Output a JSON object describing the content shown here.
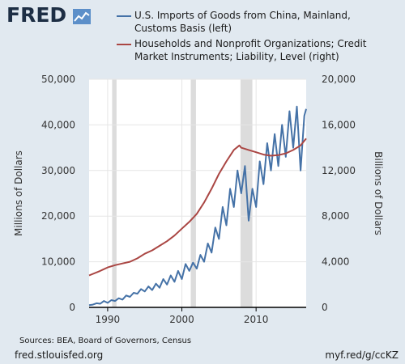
{
  "brand": {
    "logo_text": "FRED",
    "icon_name": "fred-chart-icon"
  },
  "colors": {
    "left_series": "#4572a7",
    "right_series": "#aa4643",
    "recession": "#dcdcdc",
    "background": "#e1e9f0"
  },
  "legend": {
    "items": [
      {
        "label_lines": [
          "U.S. Imports of Goods from China, Mainland,",
          "Customs Basis (left)"
        ]
      },
      {
        "label_lines": [
          "Households and Nonprofit Organizations; Credit",
          "Market Instruments; Liability, Level (right)"
        ]
      }
    ]
  },
  "footer": {
    "sources": "Sources: BEA, Board of Governors, Census",
    "left_link": "fred.stlouisfed.org",
    "right_link": "myf.red/g/ccKZ"
  },
  "chart_data": {
    "type": "line",
    "x_axis": {
      "range": [
        1987.5,
        2016.75
      ],
      "ticks": [
        1990,
        2000,
        2010
      ],
      "tick_labels": [
        "1990",
        "2000",
        "2010"
      ]
    },
    "y_left": {
      "label": "Millions of Dollars",
      "range": [
        0,
        50000
      ],
      "ticks": [
        0,
        10000,
        20000,
        30000,
        40000,
        50000
      ],
      "tick_labels": [
        "0",
        "10,000",
        "20,000",
        "30,000",
        "40,000",
        "50,000"
      ]
    },
    "y_right": {
      "label": "Billions of Dollars",
      "range": [
        0,
        20000
      ],
      "ticks": [
        0,
        4000,
        8000,
        12000,
        16000,
        20000
      ],
      "tick_labels": [
        "0",
        "4,000",
        "8,000",
        "12,000",
        "16,000",
        "20,000"
      ]
    },
    "grid": true,
    "recessions": [
      [
        1990.6,
        1991.2
      ],
      [
        2001.2,
        2001.9
      ],
      [
        2007.9,
        2009.5
      ]
    ],
    "series": [
      {
        "name": "U.S. Imports of Goods from China, Mainland, Customs Basis (left)",
        "axis": "left",
        "x": [
          1987.5,
          1988.0,
          1988.5,
          1989.0,
          1989.5,
          1990.0,
          1990.5,
          1991.0,
          1991.5,
          1992.0,
          1992.5,
          1993.0,
          1993.5,
          1994.0,
          1994.5,
          1995.0,
          1995.5,
          1996.0,
          1996.5,
          1997.0,
          1997.5,
          1998.0,
          1998.5,
          1999.0,
          1999.5,
          2000.0,
          2000.5,
          2001.0,
          2001.5,
          2002.0,
          2002.5,
          2003.0,
          2003.5,
          2004.0,
          2004.5,
          2005.0,
          2005.5,
          2006.0,
          2006.5,
          2007.0,
          2007.5,
          2008.0,
          2008.5,
          2009.0,
          2009.5,
          2010.0,
          2010.5,
          2011.0,
          2011.5,
          2012.0,
          2012.5,
          2013.0,
          2013.5,
          2014.0,
          2014.5,
          2015.0,
          2015.5,
          2016.0,
          2016.5,
          2016.75
        ],
        "y": [
          500,
          600,
          900,
          800,
          1400,
          1000,
          1600,
          1400,
          2000,
          1700,
          2600,
          2300,
          3200,
          3000,
          4000,
          3500,
          4600,
          3800,
          5200,
          4300,
          6200,
          5000,
          7000,
          5600,
          8000,
          6200,
          9500,
          8000,
          9800,
          8500,
          11500,
          10000,
          14000,
          12000,
          17500,
          15000,
          22000,
          18000,
          26000,
          22000,
          30000,
          25000,
          31000,
          19000,
          26000,
          22000,
          32000,
          27000,
          36000,
          30000,
          38000,
          31000,
          40000,
          33000,
          43000,
          35000,
          44000,
          30000,
          42000,
          43500
        ]
      },
      {
        "name": "Households and Nonprofit Organizations; Credit Market Instruments; Liability, Level (right)",
        "axis": "right",
        "x": [
          1987.5,
          1989.0,
          1990.0,
          1991.0,
          1992.0,
          1993.0,
          1994.0,
          1995.0,
          1996.0,
          1997.0,
          1998.0,
          1999.0,
          2000.0,
          2001.0,
          2002.0,
          2003.0,
          2004.0,
          2005.0,
          2006.0,
          2007.0,
          2007.75,
          2008.0,
          2009.0,
          2010.0,
          2011.0,
          2012.0,
          2013.0,
          2014.0,
          2015.0,
          2016.0,
          2016.75
        ],
        "y": [
          2800,
          3200,
          3500,
          3700,
          3850,
          4000,
          4300,
          4700,
          5000,
          5400,
          5800,
          6300,
          6900,
          7500,
          8200,
          9200,
          10400,
          11700,
          12800,
          13800,
          14200,
          14000,
          13800,
          13600,
          13400,
          13300,
          13350,
          13500,
          13800,
          14200,
          14800
        ]
      }
    ]
  }
}
